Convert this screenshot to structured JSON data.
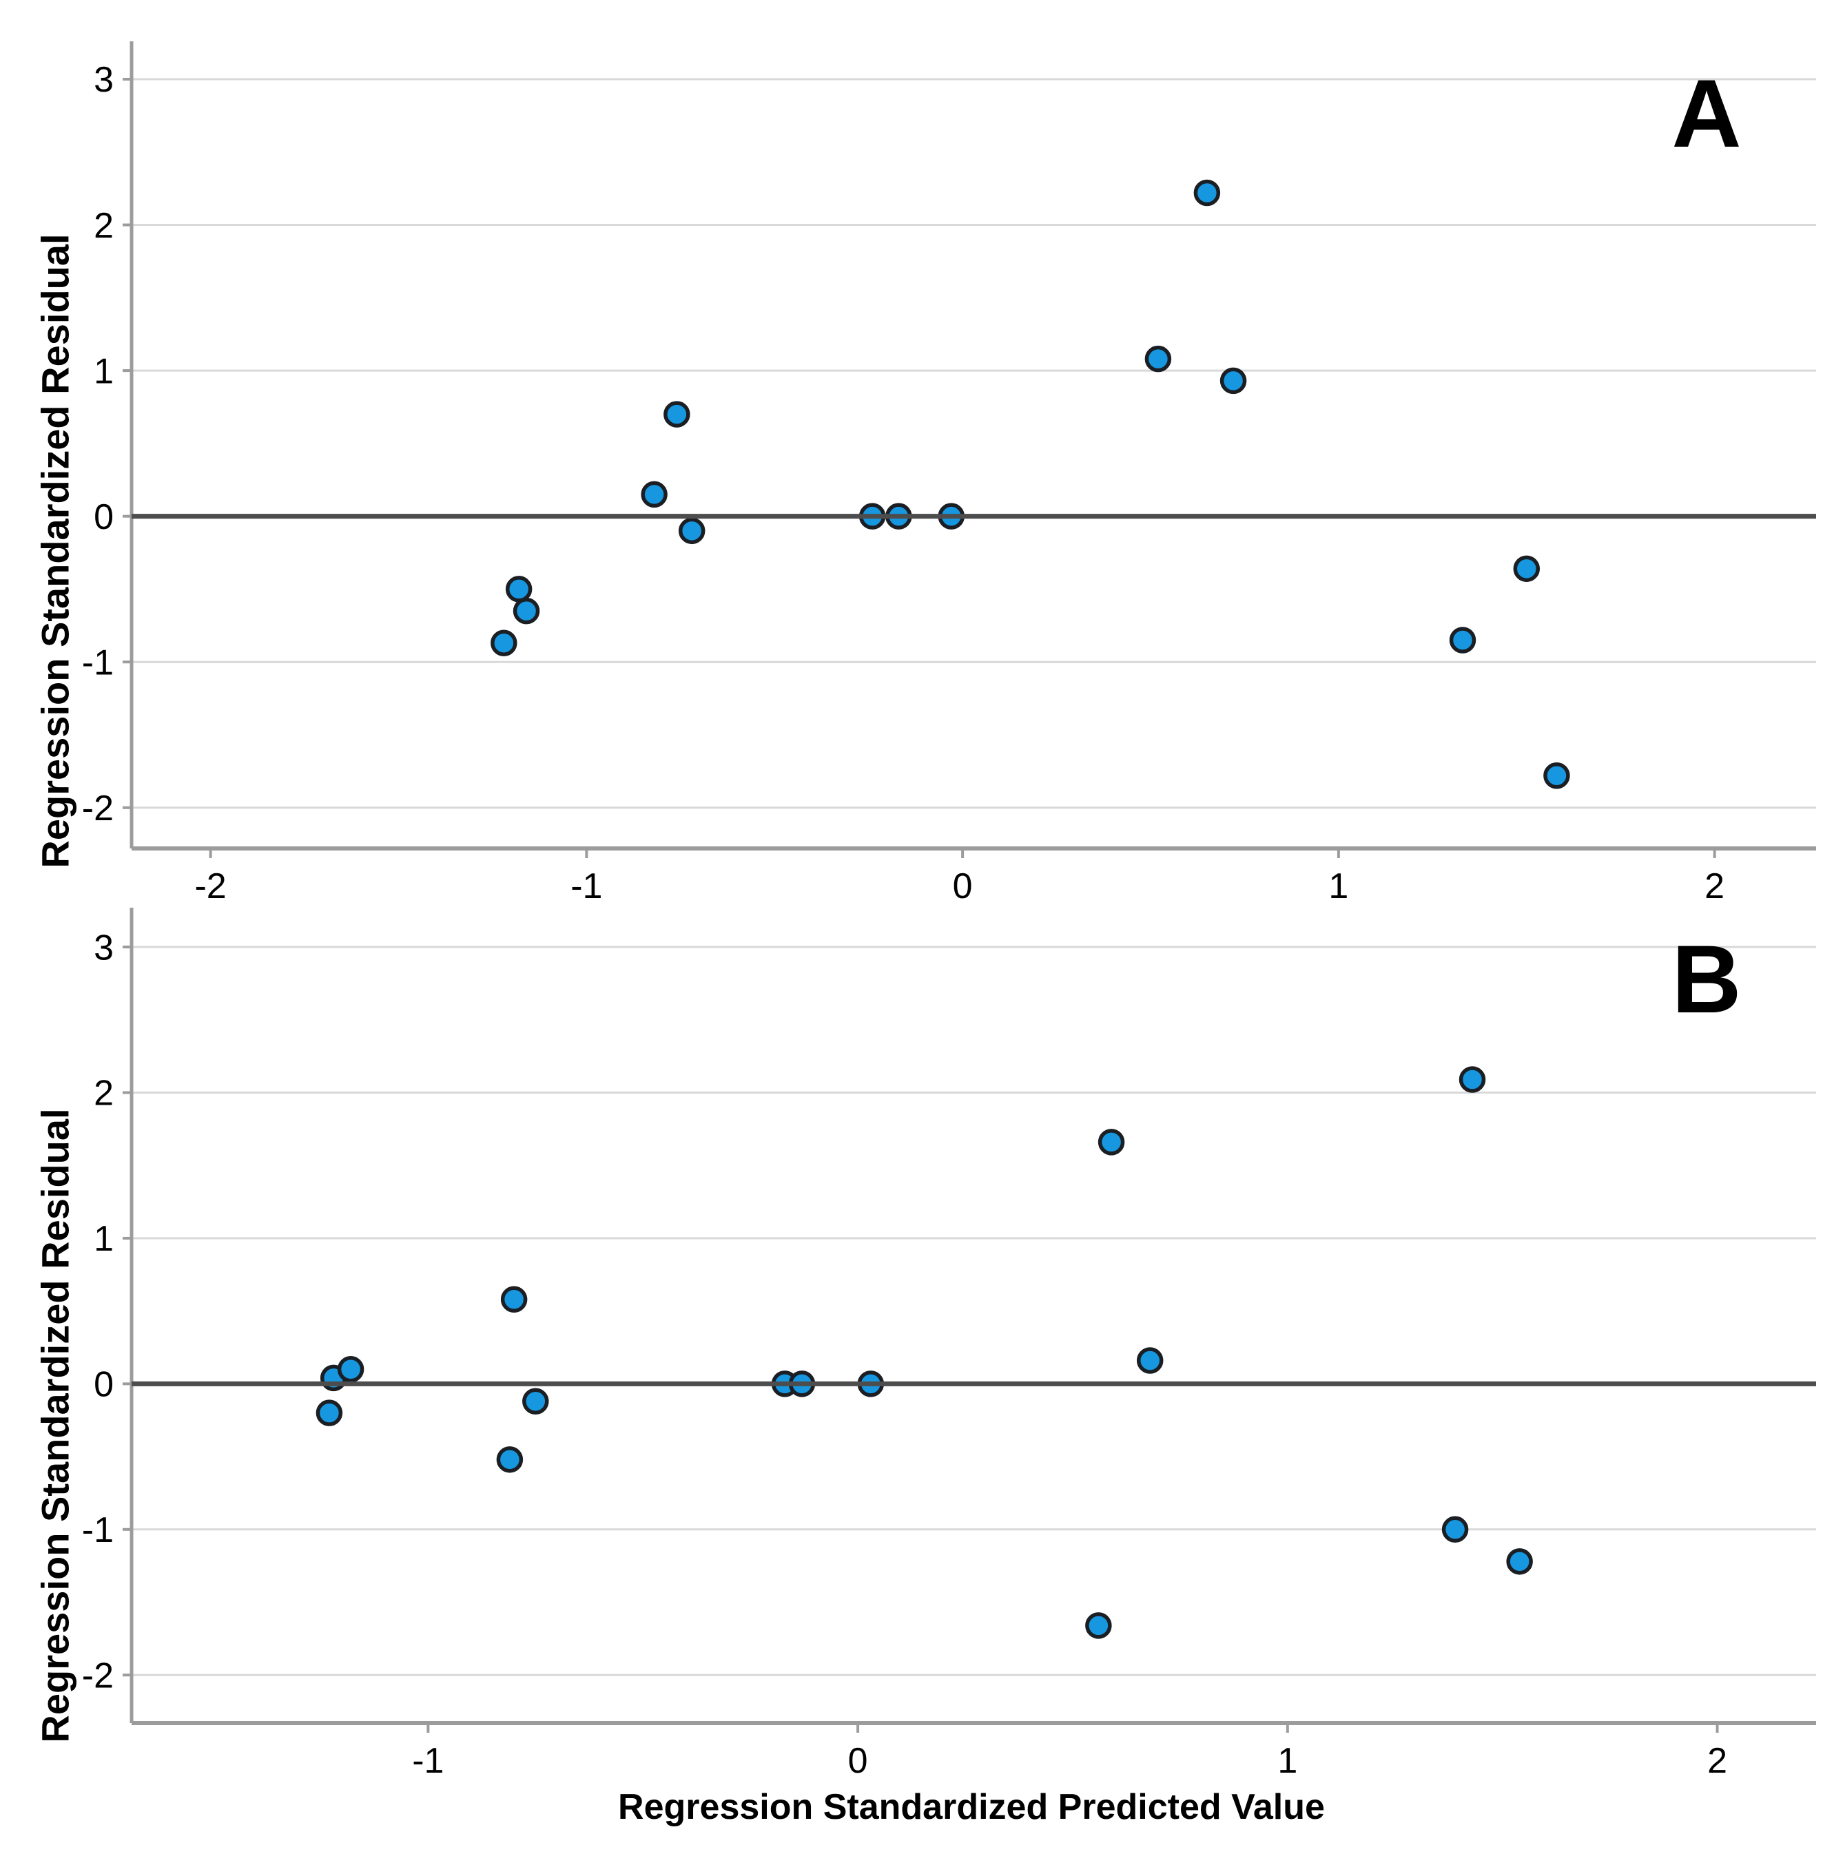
{
  "figure": {
    "y_axis_label": "Regression Standardized Residual",
    "x_axis_label": "Regression Standardized Predicted Value"
  },
  "styles": {
    "point_fill": "#1697E0",
    "point_stroke": "#1B1E23",
    "grid_color": "#D9D9D9",
    "zero_line_color": "#4D4D4D",
    "axis_color": "#9C9C9C",
    "text_color": "#000000",
    "background": "#FFFFFF"
  },
  "chart_data": [
    {
      "type": "scatter",
      "panel_label": "A",
      "xlabel": "",
      "ylabel": "Regression Standardized Residual",
      "x_ticks": [
        -2,
        -1,
        0,
        1,
        2
      ],
      "y_ticks": [
        3,
        2,
        1,
        0,
        -1,
        -2
      ],
      "xlim": [
        -2.21,
        2.27
      ],
      "ylim": [
        -2.28,
        3.26
      ],
      "grid": "horizontal",
      "zero_reference_line": true,
      "legend": "none",
      "points": [
        [
          -1.22,
          -0.87
        ],
        [
          -1.18,
          -0.5
        ],
        [
          -1.16,
          -0.65
        ],
        [
          -0.82,
          0.15
        ],
        [
          -0.76,
          0.7
        ],
        [
          -0.72,
          -0.1
        ],
        [
          -0.24,
          0.0
        ],
        [
          -0.17,
          0.0
        ],
        [
          -0.03,
          0.0
        ],
        [
          0.52,
          1.08
        ],
        [
          0.65,
          2.22
        ],
        [
          0.72,
          0.93
        ],
        [
          1.33,
          -0.85
        ],
        [
          1.5,
          -0.36
        ],
        [
          1.58,
          -1.78
        ]
      ]
    },
    {
      "type": "scatter",
      "panel_label": "B",
      "xlabel": "Regression Standardized Predicted Value",
      "ylabel": "Regression Standardized Residual",
      "x_ticks": [
        -1,
        0,
        1,
        2
      ],
      "y_ticks": [
        3,
        2,
        1,
        0,
        -1,
        -2
      ],
      "xlim": [
        -1.69,
        2.23
      ],
      "ylim": [
        -2.33,
        3.27
      ],
      "grid": "horizontal",
      "zero_reference_line": true,
      "legend": "none",
      "points": [
        [
          -1.23,
          -0.2
        ],
        [
          -1.22,
          0.04
        ],
        [
          -1.18,
          0.1
        ],
        [
          -0.81,
          -0.52
        ],
        [
          -0.8,
          0.58
        ],
        [
          -0.75,
          -0.12
        ],
        [
          -0.17,
          0.0
        ],
        [
          -0.13,
          0.0
        ],
        [
          0.03,
          0.0
        ],
        [
          0.56,
          -1.66
        ],
        [
          0.59,
          1.66
        ],
        [
          0.68,
          0.16
        ],
        [
          1.39,
          -1.0
        ],
        [
          1.43,
          2.09
        ],
        [
          1.54,
          -1.22
        ]
      ]
    }
  ]
}
